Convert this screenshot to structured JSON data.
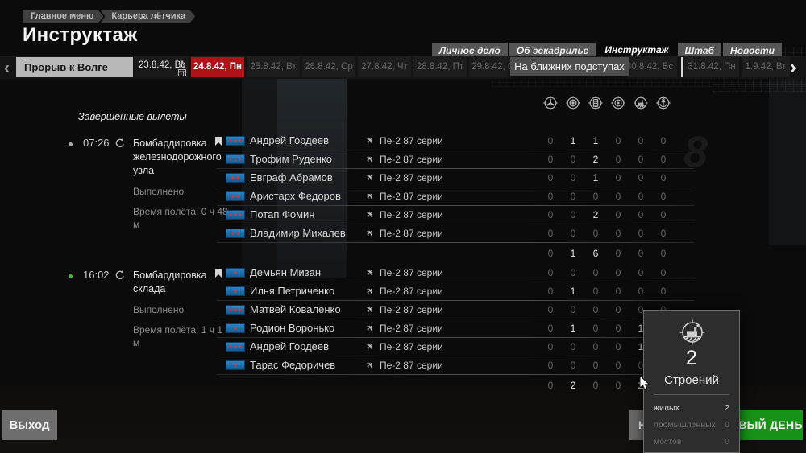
{
  "breadcrumb": {
    "items": [
      {
        "label": "Главное меню"
      },
      {
        "label": "Карьера лётчика"
      }
    ]
  },
  "page_title": "Инструктаж",
  "header_tabs": [
    {
      "label": "Личное дело",
      "selected": false
    },
    {
      "label": "Об эскадрилье",
      "selected": false
    },
    {
      "label": "Инструктаж",
      "selected": true
    },
    {
      "label": "Штаб",
      "selected": false
    },
    {
      "label": "Новости",
      "selected": false
    }
  ],
  "timeline": {
    "prev_arrow": "‹",
    "next_arrow": "›",
    "chapter_button": "Прорыв к Волге",
    "phase_overlay": "На ближних подступах",
    "dates": [
      {
        "label": "23.8.42, Вс",
        "state": "past",
        "has_icons": true
      },
      {
        "label": "24.8.42, Пн",
        "state": "current",
        "has_icons": false
      },
      {
        "label": "25.8.42, Вт",
        "state": "future",
        "has_icons": false
      },
      {
        "label": "26.8.42, Ср",
        "state": "future",
        "has_icons": false
      },
      {
        "label": "27.8.42, Чт",
        "state": "future",
        "has_icons": false
      },
      {
        "label": "28.8.42, Пт",
        "state": "future",
        "has_icons": false
      },
      {
        "label": "29.8.42, Сб",
        "state": "future",
        "has_icons": false
      },
      {
        "label": "30.8.42, Вс",
        "state": "future",
        "has_icons": false
      },
      {
        "label": "31.8.42, Пн",
        "state": "future",
        "has_icons": false
      },
      {
        "label": "1.9.42, Вт",
        "state": "future",
        "has_icons": false
      }
    ]
  },
  "results_table": {
    "section_title": "Завершённые вылеты",
    "target_columns": [
      "aircraft",
      "vehicles",
      "trains",
      "artillery",
      "buildings",
      "ships"
    ],
    "missions": [
      {
        "time": "07:26",
        "dot_color": "#a9adad",
        "title": "Бомбардировка железнодорожного узла",
        "result": "Выполнено",
        "flight_time": "Время полёта: 0 ч 48 м",
        "pilots": [
          {
            "name": "Андрей Гордеев",
            "rank_stars": 3,
            "bookmark": true,
            "aircraft": "Пе-2 87 серии",
            "scores": [
              0,
              1,
              1,
              0,
              0,
              0
            ]
          },
          {
            "name": "Трофим Руденко",
            "rank_stars": 3,
            "bookmark": false,
            "aircraft": "Пе-2 87 серии",
            "scores": [
              0,
              0,
              2,
              0,
              0,
              0
            ]
          },
          {
            "name": "Евграф Абрамов",
            "rank_stars": 2,
            "bookmark": false,
            "aircraft": "Пе-2 87 серии",
            "scores": [
              0,
              0,
              1,
              0,
              0,
              0
            ]
          },
          {
            "name": "Аристарх Федоров",
            "rank_stars": 2,
            "bookmark": false,
            "aircraft": "Пе-2 87 серии",
            "scores": [
              0,
              0,
              0,
              0,
              0,
              0
            ]
          },
          {
            "name": "Потап Фомин",
            "rank_stars": 3,
            "bookmark": false,
            "aircraft": "Пе-2 87 серии",
            "scores": [
              0,
              0,
              2,
              0,
              0,
              0
            ]
          },
          {
            "name": "Владимир Михалев",
            "rank_stars": 2,
            "bookmark": false,
            "aircraft": "Пе-2 87 серии",
            "scores": [
              0,
              0,
              0,
              0,
              0,
              0
            ]
          }
        ],
        "totals": [
          0,
          1,
          6,
          0,
          0,
          0
        ]
      },
      {
        "time": "16:02",
        "dot_color": "#43bb43",
        "title": "Бомбардировка склада",
        "result": "Выполнено",
        "flight_time": "Время полёта: 1 ч 1 м",
        "pilots": [
          {
            "name": "Демьян Мизан",
            "rank_stars": 1,
            "bookmark": true,
            "aircraft": "Пе-2 87 серии",
            "scores": [
              0,
              0,
              0,
              0,
              0,
              0
            ]
          },
          {
            "name": "Илья Петриченко",
            "rank_stars": 1,
            "bookmark": false,
            "aircraft": "Пе-2 87 серии",
            "scores": [
              0,
              1,
              0,
              0,
              0,
              0
            ]
          },
          {
            "name": "Матвей Коваленко",
            "rank_stars": 3,
            "bookmark": false,
            "aircraft": "Пе-2 87 серии",
            "scores": [
              0,
              0,
              0,
              0,
              0,
              0
            ]
          },
          {
            "name": "Родион Воронько",
            "rank_stars": 1,
            "bookmark": false,
            "aircraft": "Пе-2 87 серии",
            "scores": [
              0,
              1,
              0,
              0,
              1,
              0
            ]
          },
          {
            "name": "Андрей Гордеев",
            "rank_stars": 3,
            "bookmark": false,
            "aircraft": "Пе-2 87 серии",
            "scores": [
              0,
              0,
              0,
              0,
              1,
              0
            ]
          },
          {
            "name": "Тарас Федоричев",
            "rank_stars": 1,
            "bookmark": false,
            "aircraft": "Пе-2 87 серии",
            "scores": [
              0,
              0,
              0,
              0,
              0,
              0
            ]
          }
        ],
        "totals": [
          0,
          2,
          0,
          0,
          2,
          0
        ]
      }
    ]
  },
  "tooltip": {
    "count": "2",
    "title": "Строений",
    "rows": [
      {
        "label": "жилых",
        "value": "2",
        "dim": false
      },
      {
        "label": "промышленных",
        "value": "0",
        "dim": true
      },
      {
        "label": "мостов",
        "value": "0",
        "dim": true
      }
    ]
  },
  "footer": {
    "exit_button": "Выход",
    "covered_button_fragment": "Н",
    "next_day_button_visible": "ВЫЙ ДЕНЬ"
  },
  "background": {
    "marking": "8"
  },
  "colors": {
    "accent_red": "#b01218",
    "accent_green": "#179117",
    "rank_badge_blue": "#1d6fb0",
    "star_red": "#dd3434"
  }
}
